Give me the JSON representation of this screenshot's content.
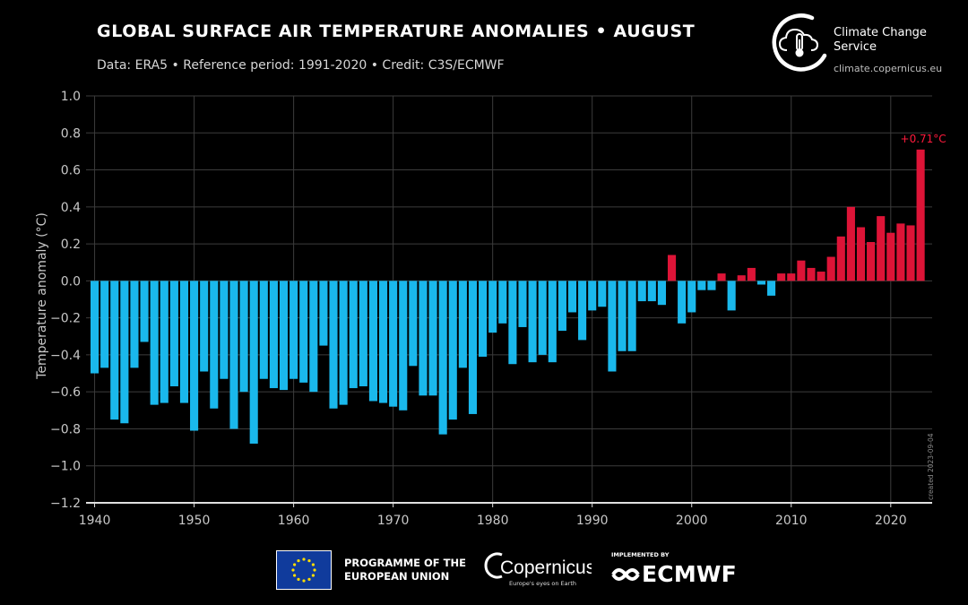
{
  "header": {
    "title": "GLOBAL SURFACE AIR TEMPERATURE ANOMALIES • AUGUST",
    "subtitle": "Data: ERA5 • Reference period: 1991-2020 • Credit: C3S/ECMWF"
  },
  "brand": {
    "name": "Climate Change Service",
    "url": "climate.copernicus.eu",
    "icon": "cloud-thermometer-icon"
  },
  "side_note": "created 2023-09-04",
  "footer": {
    "eu_text": "PROGRAMME OF THE EUROPEAN UNION",
    "copernicus_name": "Copernicus",
    "copernicus_tagline": "Europe's eyes on Earth",
    "ecmwf_implemented": "IMPLEMENTED BY",
    "ecmwf_name": "ECMWF"
  },
  "colors": {
    "negative": "#1ab8ec",
    "positive": "#dd1437",
    "annotation": "#ff1a3c",
    "grid": "#3c3c3c",
    "axis": "#e0e0e0",
    "tick": "#c8c8c8"
  },
  "chart_data": {
    "type": "bar",
    "title": "GLOBAL SURFACE AIR TEMPERATURE ANOMALIES • AUGUST",
    "xlabel": "",
    "ylabel": "Temperature anomaly (°C)",
    "x": [
      1940,
      1941,
      1942,
      1943,
      1944,
      1945,
      1946,
      1947,
      1948,
      1949,
      1950,
      1951,
      1952,
      1953,
      1954,
      1955,
      1956,
      1957,
      1958,
      1959,
      1960,
      1961,
      1962,
      1963,
      1964,
      1965,
      1966,
      1967,
      1968,
      1969,
      1970,
      1971,
      1972,
      1973,
      1974,
      1975,
      1976,
      1977,
      1978,
      1979,
      1980,
      1981,
      1982,
      1983,
      1984,
      1985,
      1986,
      1987,
      1988,
      1989,
      1990,
      1991,
      1992,
      1993,
      1994,
      1995,
      1996,
      1997,
      1998,
      1999,
      2000,
      2001,
      2002,
      2003,
      2004,
      2005,
      2006,
      2007,
      2008,
      2009,
      2010,
      2011,
      2012,
      2013,
      2014,
      2015,
      2016,
      2017,
      2018,
      2019,
      2020,
      2021,
      2022,
      2023
    ],
    "values": [
      -0.5,
      -0.47,
      -0.75,
      -0.77,
      -0.47,
      -0.33,
      -0.67,
      -0.66,
      -0.57,
      -0.66,
      -0.81,
      -0.49,
      -0.69,
      -0.53,
      -0.8,
      -0.6,
      -0.88,
      -0.53,
      -0.58,
      -0.59,
      -0.53,
      -0.55,
      -0.6,
      -0.35,
      -0.69,
      -0.67,
      -0.58,
      -0.57,
      -0.65,
      -0.66,
      -0.68,
      -0.7,
      -0.46,
      -0.62,
      -0.62,
      -0.83,
      -0.75,
      -0.47,
      -0.72,
      -0.41,
      -0.28,
      -0.23,
      -0.45,
      -0.25,
      -0.44,
      -0.4,
      -0.44,
      -0.27,
      -0.17,
      -0.32,
      -0.16,
      -0.14,
      -0.49,
      -0.38,
      -0.38,
      -0.11,
      -0.11,
      -0.13,
      0.14,
      -0.23,
      -0.17,
      -0.05,
      -0.05,
      0.04,
      -0.16,
      0.03,
      0.07,
      -0.02,
      -0.08,
      0.04,
      0.04,
      0.11,
      0.07,
      0.05,
      0.13,
      0.24,
      0.4,
      0.29,
      0.21,
      0.35,
      0.26,
      0.31,
      0.3,
      0.71
    ],
    "xlim": [
      1939.5,
      2023.8
    ],
    "ylim": [
      -1.2,
      1.0
    ],
    "yticks": [
      1.0,
      0.8,
      0.6,
      0.4,
      0.2,
      0.0,
      -0.2,
      -0.4,
      -0.6,
      -0.8,
      -1.0,
      -1.2
    ],
    "ytick_labels": [
      "1.0",
      "0.8",
      "0.6",
      "0.4",
      "0.2",
      "0.0",
      "−0.2",
      "−0.4",
      "−0.6",
      "−0.8",
      "−1.0",
      "−1.2"
    ],
    "xticks": [
      1940,
      1950,
      1960,
      1970,
      1980,
      1990,
      2000,
      2010,
      2020
    ],
    "xtick_labels": [
      "1940",
      "1950",
      "1960",
      "1970",
      "1980",
      "1990",
      "2000",
      "2010",
      "2020"
    ],
    "grid": true,
    "annotation": {
      "x": 2023,
      "y": 0.71,
      "text": "+0.71°C"
    }
  }
}
